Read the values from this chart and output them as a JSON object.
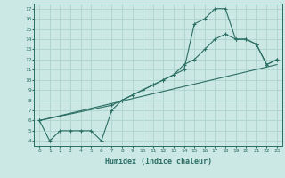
{
  "xlabel": "Humidex (Indice chaleur)",
  "bg_color": "#cce8e4",
  "line_color": "#2a6e64",
  "grid_color": "#aed4ce",
  "xlim": [
    -0.5,
    23.5
  ],
  "ylim": [
    3.5,
    17.5
  ],
  "xticks": [
    0,
    1,
    2,
    3,
    4,
    5,
    6,
    7,
    8,
    9,
    10,
    11,
    12,
    13,
    14,
    15,
    16,
    17,
    18,
    19,
    20,
    21,
    22,
    23
  ],
  "yticks": [
    4,
    5,
    6,
    7,
    8,
    9,
    10,
    11,
    12,
    13,
    14,
    15,
    16,
    17
  ],
  "line1_x": [
    0,
    1,
    2,
    3,
    4,
    5,
    6,
    7,
    8,
    9,
    10,
    11,
    12,
    13,
    14,
    15,
    16,
    17,
    18,
    19,
    20,
    21,
    22,
    23
  ],
  "line1_y": [
    6,
    4,
    5,
    5,
    5,
    5,
    4,
    7,
    8,
    8.5,
    9,
    9.5,
    10,
    10.5,
    11,
    15.5,
    16,
    17,
    17,
    14,
    14,
    13.5,
    11.5,
    12
  ],
  "line2_x": [
    0,
    7,
    8,
    9,
    10,
    11,
    12,
    13,
    14,
    15,
    16,
    17,
    18,
    19,
    20,
    21,
    22,
    23
  ],
  "line2_y": [
    6,
    7.5,
    8,
    8.5,
    9,
    9.5,
    10,
    10.5,
    11.5,
    12,
    13,
    14,
    14.5,
    14,
    14,
    13.5,
    11.5,
    12
  ],
  "line3_x": [
    0,
    23
  ],
  "line3_y": [
    6,
    11.5
  ]
}
